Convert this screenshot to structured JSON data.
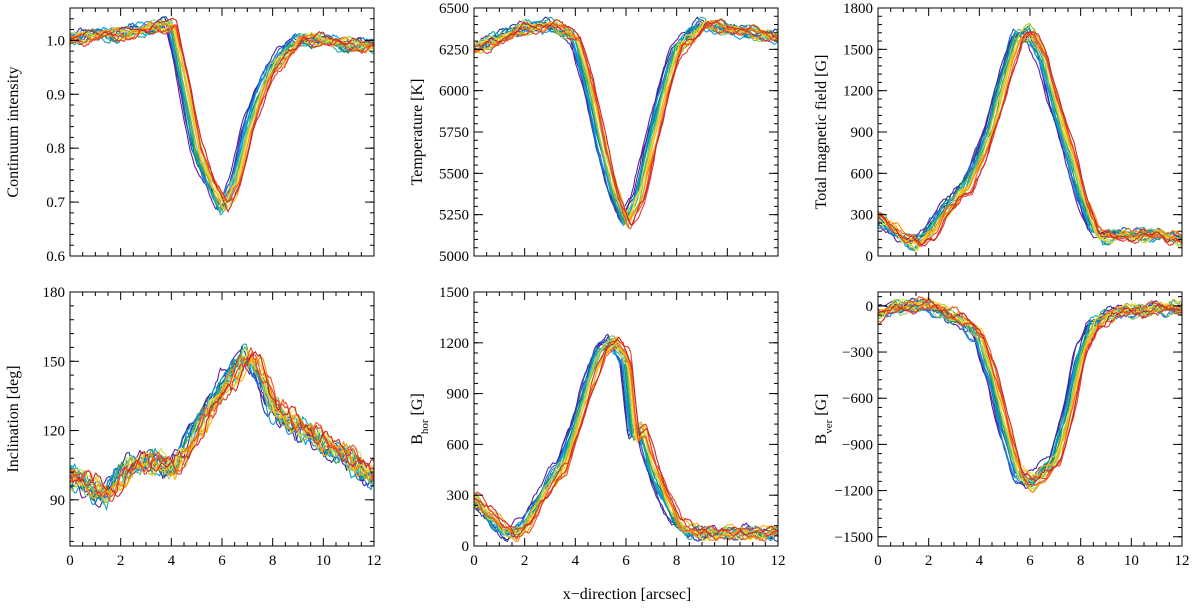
{
  "figure": {
    "shared_xlabel": "x−direction  [arcsec]"
  },
  "chart_data": [
    {
      "type": "line",
      "ylabel": "Continuum intensity",
      "xlim": [
        0,
        12
      ],
      "ylim": [
        0.6,
        1.06
      ],
      "xticks": [
        0,
        2,
        4,
        6,
        8,
        10,
        12
      ],
      "yticks": [
        0.6,
        0.7,
        0.8,
        0.9,
        1.0
      ],
      "ytick_labels": [
        "0.6",
        "0.7",
        "0.8",
        "0.9",
        "1.0"
      ],
      "show_xtick_labels": false,
      "series_count": 20,
      "representative_profile": {
        "x": [
          0,
          1,
          2,
          3,
          4,
          4.5,
          5,
          5.5,
          6,
          6.5,
          7,
          7.5,
          8,
          9,
          10,
          11,
          12
        ],
        "y": [
          1.0,
          1.01,
          1.01,
          1.02,
          1.03,
          0.92,
          0.8,
          0.74,
          0.69,
          0.73,
          0.83,
          0.9,
          0.95,
          1.0,
          1.0,
          0.99,
          0.99
        ]
      }
    },
    {
      "type": "line",
      "ylabel": "Temperature  [K]",
      "xlim": [
        0,
        12
      ],
      "ylim": [
        5000,
        6500
      ],
      "xticks": [
        0,
        2,
        4,
        6,
        8,
        10,
        12
      ],
      "yticks": [
        5000,
        5250,
        5500,
        5750,
        6000,
        6250,
        6500
      ],
      "ytick_labels": [
        "5000",
        "5250",
        "5500",
        "5750",
        "6000",
        "6250",
        "6500"
      ],
      "show_xtick_labels": false,
      "series_count": 20,
      "representative_profile": {
        "x": [
          0,
          1,
          2,
          3,
          4,
          4.5,
          5,
          5.5,
          6,
          6.5,
          7,
          7.5,
          8,
          9,
          10,
          11,
          12
        ],
        "y": [
          6250,
          6320,
          6380,
          6400,
          6330,
          6050,
          5700,
          5400,
          5200,
          5350,
          5700,
          6000,
          6250,
          6400,
          6380,
          6350,
          6330
        ]
      }
    },
    {
      "type": "line",
      "ylabel": "Total magnetic field  [G]",
      "xlim": [
        0,
        12
      ],
      "ylim": [
        0,
        1800
      ],
      "xticks": [
        0,
        2,
        4,
        6,
        8,
        10,
        12
      ],
      "yticks": [
        0,
        300,
        600,
        900,
        1200,
        1500,
        1800
      ],
      "ytick_labels": [
        "0",
        "300",
        "600",
        "900",
        "1200",
        "1500",
        "1800"
      ],
      "show_xtick_labels": false,
      "series_count": 20,
      "representative_profile": {
        "x": [
          0,
          0.5,
          1,
          1.5,
          2,
          2.5,
          3,
          3.5,
          4,
          4.5,
          5,
          5.5,
          6,
          6.5,
          7,
          7.5,
          8,
          8.5,
          9,
          10,
          11,
          12
        ],
        "y": [
          280,
          200,
          130,
          80,
          150,
          300,
          400,
          500,
          700,
          950,
          1300,
          1600,
          1620,
          1450,
          1100,
          800,
          450,
          200,
          130,
          150,
          150,
          120
        ]
      }
    },
    {
      "type": "line",
      "ylabel": "Inclination  [deg]",
      "xlim": [
        0,
        12
      ],
      "ylim": [
        70,
        180
      ],
      "xticks": [
        0,
        2,
        4,
        6,
        8,
        10,
        12
      ],
      "yticks": [
        90,
        120,
        150,
        180
      ],
      "ytick_labels": [
        "90",
        "120",
        "150",
        "180"
      ],
      "show_xtick_labels": true,
      "xtick_labels": [
        "0",
        "2",
        "4",
        "6",
        "8",
        "10",
        "12"
      ],
      "series_count": 20,
      "representative_profile": {
        "x": [
          0,
          0.5,
          1,
          1.5,
          2,
          2.5,
          3,
          3.5,
          4,
          4.5,
          5,
          5.5,
          6,
          6.5,
          7,
          7.5,
          8,
          9,
          10,
          11,
          12
        ],
        "y": [
          100,
          98,
          95,
          92,
          100,
          106,
          106,
          106,
          104,
          110,
          120,
          130,
          138,
          145,
          153,
          145,
          130,
          122,
          115,
          108,
          100
        ]
      }
    },
    {
      "type": "line",
      "ylabel_main": "B",
      "ylabel_sub": "hor",
      "ylabel_unit": "  [G]",
      "xlim": [
        0,
        12
      ],
      "ylim": [
        0,
        1500
      ],
      "xticks": [
        0,
        2,
        4,
        6,
        8,
        10,
        12
      ],
      "yticks": [
        0,
        300,
        600,
        900,
        1200,
        1500
      ],
      "ytick_labels": [
        "0",
        "300",
        "600",
        "900",
        "1200",
        "1500"
      ],
      "show_xtick_labels": true,
      "xtick_labels": [
        "0",
        "2",
        "4",
        "6",
        "8",
        "10",
        "12"
      ],
      "series_count": 20,
      "representative_profile": {
        "x": [
          0,
          0.5,
          1,
          1.5,
          2,
          2.5,
          3,
          3.5,
          4,
          4.5,
          5,
          5.5,
          6,
          6.3,
          6.6,
          7,
          7.5,
          8,
          8.5,
          9,
          10,
          11,
          12
        ],
        "y": [
          280,
          200,
          120,
          70,
          120,
          250,
          380,
          480,
          700,
          950,
          1150,
          1220,
          1100,
          650,
          700,
          480,
          300,
          150,
          90,
          80,
          80,
          80,
          80
        ]
      }
    },
    {
      "type": "line",
      "ylabel_main": "B",
      "ylabel_sub": "ver",
      "ylabel_unit": "  [G]",
      "xlim": [
        0,
        12
      ],
      "ylim": [
        -1560,
        90
      ],
      "xticks": [
        0,
        2,
        4,
        6,
        8,
        10,
        12
      ],
      "yticks": [
        -1500,
        -1200,
        -900,
        -600,
        -300,
        0
      ],
      "ytick_labels": [
        "−1500",
        "−1200",
        "−900",
        "−600",
        "−300",
        "0"
      ],
      "show_xtick_labels": true,
      "xtick_labels": [
        "0",
        "2",
        "4",
        "6",
        "8",
        "10",
        "12"
      ],
      "series_count": 20,
      "representative_profile": {
        "x": [
          0,
          0.5,
          1,
          1.5,
          2,
          2.5,
          3,
          3.5,
          4,
          4.5,
          5,
          5.5,
          6,
          6.5,
          7,
          7.5,
          8,
          8.5,
          9,
          10,
          11,
          12
        ],
        "y": [
          -60,
          -20,
          0,
          10,
          0,
          -30,
          -70,
          -120,
          -200,
          -450,
          -800,
          -1080,
          -1150,
          -1100,
          -1000,
          -700,
          -320,
          -130,
          -60,
          -30,
          -20,
          -10
        ]
      }
    }
  ]
}
